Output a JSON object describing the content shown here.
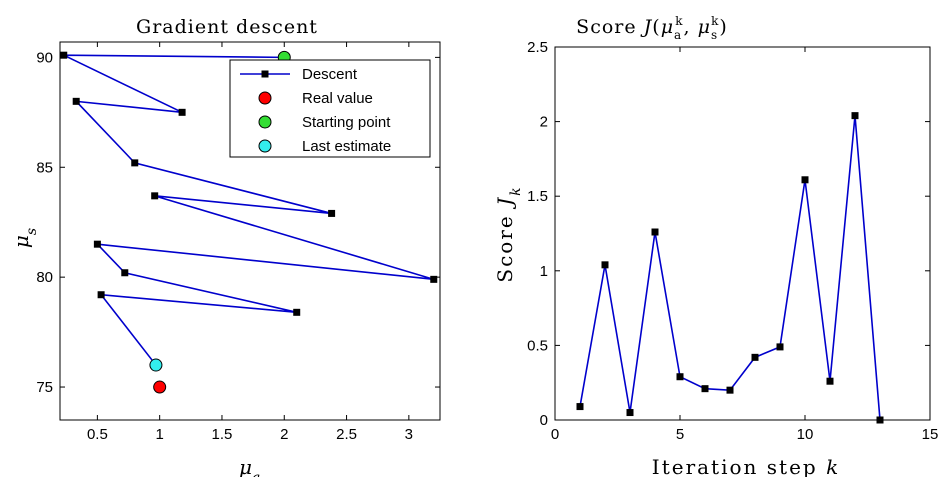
{
  "colors": {
    "line": "#0000cc",
    "marker": "#000000",
    "real_value": "#ff0000",
    "starting_point": "#33dd33",
    "last_estimate": "#33eeee"
  },
  "chart_data": [
    {
      "type": "line",
      "title": "Gradient descent",
      "xlabel": "μ_a",
      "ylabel": "μ_s",
      "xlim": [
        0.2,
        3.25
      ],
      "ylim": [
        73.5,
        90.7
      ],
      "xticks": [
        0.5,
        1,
        1.5,
        2,
        2.5,
        3
      ],
      "xtick_labels": [
        "0.5",
        "1",
        "1.5",
        "2",
        "2.5",
        "3"
      ],
      "yticks": [
        75,
        80,
        85,
        90
      ],
      "ytick_labels": [
        "75",
        "80",
        "85",
        "90"
      ],
      "legend_position": "top-right",
      "series": [
        {
          "name": "Descent",
          "marker": "square",
          "x": [
            2.0,
            0.23,
            1.18,
            0.33,
            0.8,
            2.38,
            0.96,
            3.2,
            0.5,
            0.72,
            2.1,
            0.53,
            0.97
          ],
          "y": [
            90.0,
            90.1,
            87.5,
            88.0,
            85.2,
            82.9,
            83.7,
            79.9,
            81.5,
            80.2,
            78.4,
            79.2,
            76.0
          ]
        },
        {
          "name": "Real value",
          "marker": "circle",
          "x": [
            1.0
          ],
          "y": [
            75.0
          ]
        },
        {
          "name": "Starting point",
          "marker": "circle",
          "x": [
            2.0
          ],
          "y": [
            90.0
          ]
        },
        {
          "name": "Last estimate",
          "marker": "circle",
          "x": [
            0.97
          ],
          "y": [
            76.0
          ]
        }
      ]
    },
    {
      "type": "line",
      "title_prefix": "Score ",
      "title_math": "J(μ_a^k, μ_s^k)",
      "xlabel": "Iteration step k",
      "ylabel": "Score J_k",
      "xlim": [
        0,
        15
      ],
      "ylim": [
        0,
        2.5
      ],
      "xticks": [
        0,
        5,
        10,
        15
      ],
      "xtick_labels": [
        "0",
        "5",
        "10",
        "15"
      ],
      "yticks": [
        0,
        0.5,
        1,
        1.5,
        2,
        2.5
      ],
      "ytick_labels": [
        "0",
        "0.5",
        "1",
        "1.5",
        "2",
        "2.5"
      ],
      "series": [
        {
          "marker": "square",
          "x": [
            1,
            2,
            3,
            4,
            5,
            6,
            7,
            8,
            9,
            10,
            11,
            12,
            13
          ],
          "y": [
            0.09,
            1.04,
            0.05,
            1.26,
            0.29,
            0.21,
            0.2,
            0.42,
            0.49,
            1.61,
            0.26,
            2.04,
            0.0
          ]
        }
      ]
    }
  ]
}
